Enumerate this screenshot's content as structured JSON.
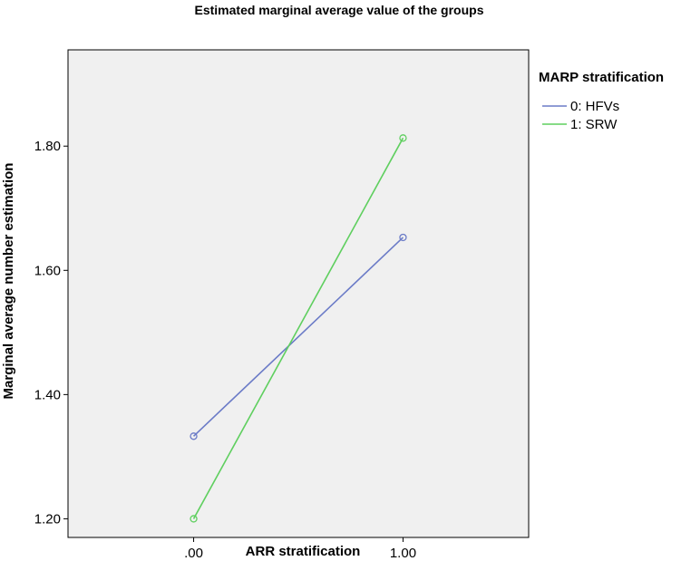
{
  "chart_data": {
    "type": "line",
    "title": "Estimated marginal average value of the groups",
    "xlabel": "ARR stratification",
    "ylabel": "Marginal average number estimation",
    "x": [
      0,
      1
    ],
    "x_tick_labels": [
      ".00",
      "1.00"
    ],
    "xlim": [
      -0.6,
      1.6
    ],
    "ylim": [
      1.17,
      1.955
    ],
    "y_ticks": [
      1.2,
      1.4,
      1.6,
      1.8
    ],
    "y_tick_labels": [
      "1.20",
      "1.40",
      "1.60",
      "1.80"
    ],
    "grid": false,
    "legend": {
      "title": "MARP stratification",
      "placement": "right"
    },
    "series": [
      {
        "name": "0: HFVs",
        "values": [
          1.333,
          1.653
        ],
        "color": "#6b7bc7"
      },
      {
        "name": "1: SRW",
        "values": [
          1.2,
          1.813
        ],
        "color": "#5fcf5f"
      }
    ],
    "plot_background": "#f0f0f0"
  }
}
